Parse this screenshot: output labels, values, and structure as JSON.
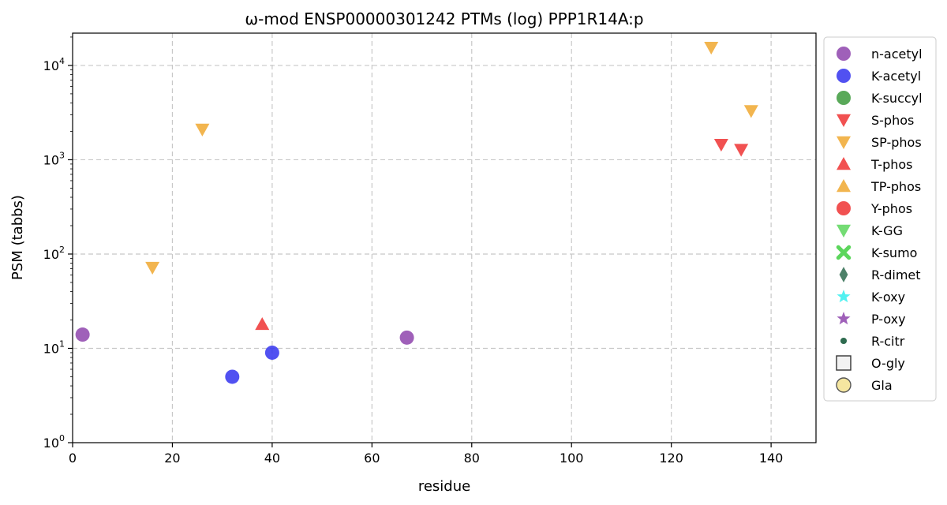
{
  "chart_data": {
    "type": "scatter",
    "title": "ω-mod ENSP00000301242 PTMs (log) PPP1R14A:p",
    "xlabel": "residue",
    "ylabel": "PSM (tabbs)",
    "xlim": [
      0,
      149
    ],
    "ylim": [
      1,
      22000
    ],
    "yscale": "log",
    "xticks": [
      0,
      20,
      40,
      60,
      80,
      100,
      120,
      140
    ],
    "yticks": [
      {
        "value": 1,
        "base": "10",
        "exp": "0"
      },
      {
        "value": 10,
        "base": "10",
        "exp": "1"
      },
      {
        "value": 100,
        "base": "10",
        "exp": "2"
      },
      {
        "value": 1000,
        "base": "10",
        "exp": "3"
      },
      {
        "value": 10000,
        "base": "10",
        "exp": "4"
      }
    ],
    "grid": true,
    "legend_position": "outside-right",
    "series": [
      {
        "name": "n-acetyl",
        "marker": "circle",
        "color": "#8e44ad",
        "points": [
          {
            "x": 2,
            "y": 14
          },
          {
            "x": 67,
            "y": 13
          }
        ]
      },
      {
        "name": "K-acetyl",
        "marker": "circle",
        "color": "#3333ee",
        "points": [
          {
            "x": 32,
            "y": 5
          },
          {
            "x": 40,
            "y": 9
          }
        ]
      },
      {
        "name": "K-succyl",
        "marker": "circle",
        "color": "#3c9a3c",
        "points": []
      },
      {
        "name": "S-phos",
        "marker": "triangle-down",
        "color": "#ee3333",
        "points": [
          {
            "x": 130,
            "y": 1450
          },
          {
            "x": 134,
            "y": 1280
          }
        ]
      },
      {
        "name": "SP-phos",
        "marker": "triangle-down",
        "color": "#f0a830",
        "points": [
          {
            "x": 16,
            "y": 72
          },
          {
            "x": 26,
            "y": 2100
          },
          {
            "x": 128,
            "y": 15500
          },
          {
            "x": 136,
            "y": 3300
          }
        ]
      },
      {
        "name": "T-phos",
        "marker": "triangle-up",
        "color": "#ee3333",
        "points": [
          {
            "x": 38,
            "y": 18
          }
        ]
      },
      {
        "name": "TP-phos",
        "marker": "triangle-up",
        "color": "#f0a830",
        "points": []
      },
      {
        "name": "Y-phos",
        "marker": "circle",
        "color": "#ee3333",
        "points": []
      },
      {
        "name": "K-GG",
        "marker": "triangle-down",
        "color": "#5cd65c",
        "points": []
      },
      {
        "name": "K-sumo",
        "marker": "x",
        "color": "#5cd65c",
        "points": []
      },
      {
        "name": "R-dimet",
        "marker": "diamond",
        "color": "#2e6b4f",
        "points": []
      },
      {
        "name": "K-oxy",
        "marker": "star",
        "color": "#33eeee",
        "points": []
      },
      {
        "name": "P-oxy",
        "marker": "star",
        "color": "#8e44ad",
        "points": []
      },
      {
        "name": "R-citr",
        "marker": "dot",
        "color": "#2e6b4f",
        "points": []
      },
      {
        "name": "O-gly",
        "marker": "square-open",
        "color": "#333333",
        "points": []
      },
      {
        "name": "Gla",
        "marker": "circle-open",
        "color": "#f5e6a0",
        "points": []
      }
    ]
  }
}
